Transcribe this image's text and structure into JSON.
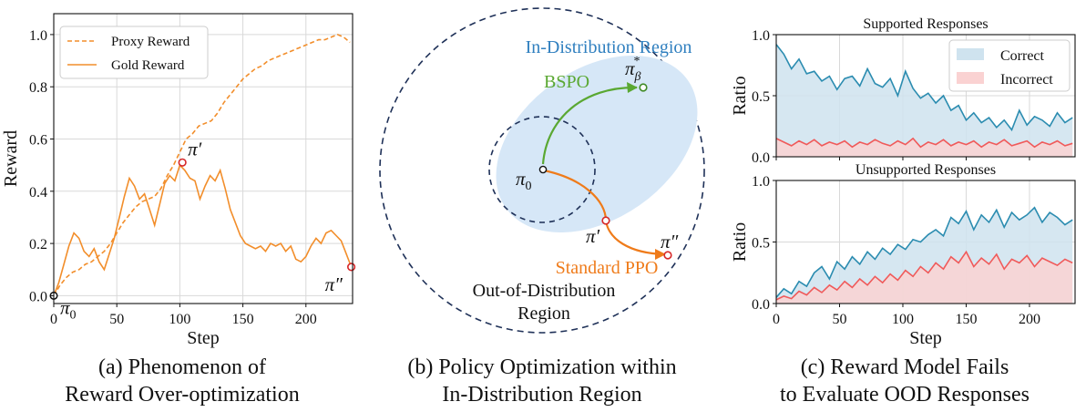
{
  "captions": {
    "a": {
      "line1": "(a) Phenomenon of",
      "line2": "Reward Over-optimization"
    },
    "b": {
      "line1": "(b) Policy Optimization within",
      "line2": "In-Distribution Region"
    },
    "c": {
      "line1": "(c) Reward Model Fails",
      "line2": "to Evaluate OOD Responses"
    }
  },
  "colors": {
    "orange": "#f28e2b",
    "dark_orange": "#ef7b1a",
    "green": "#5aa832",
    "blue_region": "#d6e7f7",
    "region_text": "#2f7fbf",
    "dashed_navy": "#1f3158",
    "correct_line": "#2b8cb0",
    "correct_fill": "#cfe3ef",
    "incorrect_line": "#f05a5a",
    "incorrect_fill": "#fad2d2",
    "point_red": "#d62728",
    "grid": "#d9d9d9"
  },
  "diagram": {
    "in_dist_label": "In-Distribution Region",
    "ood_label_1": "Out-of-Distribution",
    "ood_label_2": "Region",
    "bspo_label": "BSPO",
    "ppo_label": "Standard PPO",
    "pi0": "π",
    "pi0_sub": "0",
    "pi_prime": "π′",
    "pi_dprime": "π″",
    "pi_star": "π",
    "pi_star_sub": "β",
    "pi_star_sup": "*"
  },
  "chart_data": [
    {
      "id": "a",
      "type": "line",
      "xlabel": "Step",
      "ylabel": "Reward",
      "xlim": [
        0,
        237
      ],
      "ylim": [
        -0.03,
        1.08
      ],
      "xticks": [
        0,
        50,
        100,
        150,
        200
      ],
      "xtick_labels": [
        "0",
        "50",
        "100",
        "150",
        "200"
      ],
      "yticks": [
        0.0,
        0.2,
        0.4,
        0.6,
        0.8,
        1.0
      ],
      "ytick_labels": [
        "0.0",
        "0.2",
        "0.4",
        "0.6",
        "0.8",
        "1.0"
      ],
      "grid": true,
      "legend_position": "top-left",
      "series": [
        {
          "name": "Proxy Reward",
          "style": "dashed",
          "x": [
            0,
            5,
            10,
            15,
            20,
            25,
            30,
            35,
            40,
            45,
            50,
            55,
            60,
            65,
            70,
            75,
            80,
            85,
            90,
            95,
            100,
            105,
            110,
            115,
            120,
            125,
            130,
            135,
            140,
            145,
            150,
            155,
            160,
            165,
            170,
            175,
            180,
            185,
            190,
            195,
            200,
            205,
            210,
            215,
            220,
            225,
            230,
            235
          ],
          "y": [
            0.0,
            0.04,
            0.07,
            0.09,
            0.1,
            0.12,
            0.13,
            0.15,
            0.17,
            0.2,
            0.24,
            0.28,
            0.31,
            0.34,
            0.36,
            0.37,
            0.38,
            0.41,
            0.46,
            0.5,
            0.55,
            0.6,
            0.62,
            0.65,
            0.66,
            0.67,
            0.7,
            0.74,
            0.77,
            0.8,
            0.83,
            0.85,
            0.87,
            0.88,
            0.9,
            0.91,
            0.92,
            0.93,
            0.94,
            0.95,
            0.96,
            0.97,
            0.98,
            0.98,
            0.99,
            1.0,
            0.99,
            0.97
          ]
        },
        {
          "name": "Gold Reward",
          "style": "solid",
          "x": [
            0,
            4,
            8,
            12,
            16,
            20,
            24,
            28,
            32,
            36,
            40,
            44,
            48,
            52,
            56,
            60,
            64,
            68,
            72,
            76,
            80,
            84,
            88,
            92,
            96,
            100,
            104,
            108,
            112,
            116,
            120,
            124,
            128,
            132,
            136,
            140,
            144,
            148,
            152,
            156,
            160,
            164,
            168,
            172,
            176,
            180,
            184,
            188,
            192,
            196,
            200,
            204,
            208,
            212,
            216,
            220,
            224,
            228,
            232,
            236
          ],
          "y": [
            0.0,
            0.05,
            0.12,
            0.19,
            0.24,
            0.22,
            0.17,
            0.15,
            0.18,
            0.13,
            0.1,
            0.16,
            0.22,
            0.3,
            0.38,
            0.45,
            0.42,
            0.37,
            0.39,
            0.33,
            0.27,
            0.35,
            0.43,
            0.46,
            0.44,
            0.5,
            0.48,
            0.45,
            0.44,
            0.37,
            0.42,
            0.46,
            0.44,
            0.48,
            0.41,
            0.33,
            0.28,
            0.23,
            0.2,
            0.19,
            0.18,
            0.19,
            0.17,
            0.2,
            0.19,
            0.2,
            0.17,
            0.19,
            0.14,
            0.13,
            0.15,
            0.19,
            0.22,
            0.2,
            0.24,
            0.25,
            0.23,
            0.21,
            0.16,
            0.11
          ]
        }
      ],
      "annotations": [
        {
          "label": "π",
          "sub": "0",
          "x": 0,
          "y": 0.0
        },
        {
          "label": "π′",
          "x": 102,
          "y": 0.51
        },
        {
          "label": "π″",
          "x": 236,
          "y": 0.11
        }
      ]
    },
    {
      "id": "c_top",
      "type": "area",
      "title": "Supported Responses",
      "xlabel": "",
      "ylabel": "Ratio",
      "xlim": [
        0,
        236
      ],
      "ylim": [
        0,
        1.0
      ],
      "xticks": [
        0,
        50,
        100,
        150,
        200
      ],
      "yticks": [
        0.0,
        0.5,
        1.0
      ],
      "ytick_labels": [
        "0.0",
        "0.5",
        "1.0"
      ],
      "grid": true,
      "legend_position": "top-right",
      "series": [
        {
          "name": "Correct",
          "x": [
            0,
            6,
            12,
            18,
            24,
            30,
            36,
            42,
            48,
            54,
            60,
            66,
            72,
            78,
            84,
            90,
            96,
            102,
            108,
            114,
            120,
            126,
            132,
            138,
            144,
            150,
            156,
            162,
            168,
            174,
            180,
            186,
            192,
            198,
            204,
            210,
            216,
            222,
            228,
            234
          ],
          "y": [
            0.92,
            0.84,
            0.72,
            0.8,
            0.68,
            0.7,
            0.62,
            0.66,
            0.55,
            0.64,
            0.66,
            0.58,
            0.72,
            0.6,
            0.57,
            0.64,
            0.5,
            0.7,
            0.56,
            0.48,
            0.52,
            0.44,
            0.5,
            0.38,
            0.42,
            0.3,
            0.36,
            0.28,
            0.32,
            0.24,
            0.3,
            0.22,
            0.38,
            0.26,
            0.33,
            0.3,
            0.25,
            0.36,
            0.28,
            0.32
          ]
        },
        {
          "name": "Incorrect",
          "x": [
            0,
            6,
            12,
            18,
            24,
            30,
            36,
            42,
            48,
            54,
            60,
            66,
            72,
            78,
            84,
            90,
            96,
            102,
            108,
            114,
            120,
            126,
            132,
            138,
            144,
            150,
            156,
            162,
            168,
            174,
            180,
            186,
            192,
            198,
            204,
            210,
            216,
            222,
            228,
            234
          ],
          "y": [
            0.15,
            0.12,
            0.09,
            0.13,
            0.1,
            0.14,
            0.09,
            0.12,
            0.1,
            0.13,
            0.08,
            0.12,
            0.1,
            0.14,
            0.11,
            0.09,
            0.13,
            0.1,
            0.15,
            0.08,
            0.12,
            0.1,
            0.14,
            0.09,
            0.12,
            0.1,
            0.13,
            0.08,
            0.12,
            0.1,
            0.14,
            0.09,
            0.11,
            0.13,
            0.08,
            0.12,
            0.1,
            0.13,
            0.09,
            0.11
          ]
        }
      ]
    },
    {
      "id": "c_bottom",
      "type": "area",
      "title": "Unsupported Responses",
      "xlabel": "Step",
      "ylabel": "Ratio",
      "xlim": [
        0,
        236
      ],
      "ylim": [
        0,
        1.0
      ],
      "xticks": [
        0,
        50,
        100,
        150,
        200
      ],
      "xtick_labels": [
        "0",
        "50",
        "100",
        "150",
        "200"
      ],
      "yticks": [
        0.0,
        0.5,
        1.0
      ],
      "ytick_labels": [
        "0.0",
        "0.5",
        "1.0"
      ],
      "grid": true,
      "series": [
        {
          "name": "Correct",
          "x": [
            0,
            6,
            12,
            18,
            24,
            30,
            36,
            42,
            48,
            54,
            60,
            66,
            72,
            78,
            84,
            90,
            96,
            102,
            108,
            114,
            120,
            126,
            132,
            138,
            144,
            150,
            156,
            162,
            168,
            174,
            180,
            186,
            192,
            198,
            204,
            210,
            216,
            222,
            228,
            234
          ],
          "y": [
            0.05,
            0.12,
            0.08,
            0.18,
            0.14,
            0.25,
            0.3,
            0.2,
            0.34,
            0.28,
            0.38,
            0.32,
            0.42,
            0.36,
            0.45,
            0.4,
            0.48,
            0.44,
            0.52,
            0.5,
            0.56,
            0.6,
            0.55,
            0.7,
            0.65,
            0.75,
            0.6,
            0.72,
            0.66,
            0.76,
            0.62,
            0.74,
            0.68,
            0.72,
            0.78,
            0.66,
            0.74,
            0.7,
            0.64,
            0.68
          ]
        },
        {
          "name": "Incorrect",
          "x": [
            0,
            6,
            12,
            18,
            24,
            30,
            36,
            42,
            48,
            54,
            60,
            66,
            72,
            78,
            84,
            90,
            96,
            102,
            108,
            114,
            120,
            126,
            132,
            138,
            144,
            150,
            156,
            162,
            168,
            174,
            180,
            186,
            192,
            198,
            204,
            210,
            216,
            222,
            228,
            234
          ],
          "y": [
            0.03,
            0.06,
            0.04,
            0.1,
            0.07,
            0.13,
            0.09,
            0.15,
            0.11,
            0.18,
            0.13,
            0.2,
            0.15,
            0.22,
            0.17,
            0.24,
            0.19,
            0.27,
            0.22,
            0.3,
            0.25,
            0.33,
            0.28,
            0.38,
            0.33,
            0.42,
            0.3,
            0.37,
            0.32,
            0.4,
            0.28,
            0.36,
            0.33,
            0.39,
            0.3,
            0.37,
            0.34,
            0.31,
            0.36,
            0.33
          ]
        }
      ]
    }
  ]
}
